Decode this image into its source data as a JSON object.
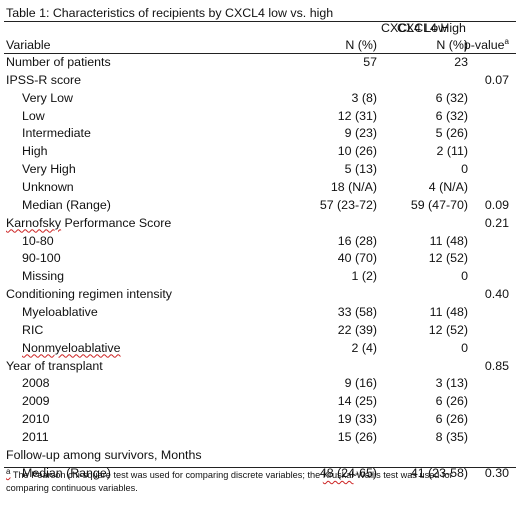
{
  "table": {
    "title": "Table 1: Characteristics of recipients by CXCL4 low vs. high",
    "group_low": "CXCL4 Low",
    "group_high": "CXCL4 High",
    "col_variable": "Variable",
    "col_low_unit": "N (%)",
    "col_high_unit": "N (%)",
    "col_p": "p-value",
    "col_p_sup": "a",
    "rows": [
      {
        "label": "Number of patients",
        "low": "57",
        "high": "23",
        "p": ""
      },
      {
        "label": "IPSS-R score",
        "low": "",
        "high": "",
        "p": "0.07"
      },
      {
        "label": "Very Low",
        "low": "3 (8)",
        "high": "6 (32)",
        "p": ""
      },
      {
        "label": "Low",
        "low": "12 (31)",
        "high": "6 (32)",
        "p": ""
      },
      {
        "label": "Intermediate",
        "low": "9 (23)",
        "high": "5 (26)",
        "p": ""
      },
      {
        "label": "High",
        "low": "10 (26)",
        "high": "2 (11)",
        "p": ""
      },
      {
        "label": "Very High",
        "low": "5 (13)",
        "high": "0",
        "p": ""
      },
      {
        "label": "Unknown",
        "low": "18 (N/A)",
        "high": "4 (N/A)",
        "p": ""
      },
      {
        "label": "Median (Range)",
        "low": "57 (23-72)",
        "high": "59 (47-70)",
        "p": "0.09"
      },
      {
        "label": "Karnofsky Performance Score",
        "low": "",
        "high": "",
        "p": "0.21"
      },
      {
        "label": "10-80",
        "low": "16 (28)",
        "high": "11 (48)",
        "p": ""
      },
      {
        "label": "90-100",
        "low": "40 (70)",
        "high": "12 (52)",
        "p": ""
      },
      {
        "label": "Missing",
        "low": "1 (2)",
        "high": "0",
        "p": ""
      },
      {
        "label": "Conditioning regimen intensity",
        "low": "",
        "high": "",
        "p": "0.40"
      },
      {
        "label": "Myeloablative",
        "low": "33 (58)",
        "high": "11 (48)",
        "p": ""
      },
      {
        "label": "RIC",
        "low": "22 (39)",
        "high": "12 (52)",
        "p": ""
      },
      {
        "label": "Nonmyeloablative",
        "low": "2 (4)",
        "high": "0",
        "p": ""
      },
      {
        "label": "Year of transplant",
        "low": "",
        "high": "",
        "p": "0.85"
      },
      {
        "label": "2008",
        "low": "9 (16)",
        "high": "3 (13)",
        "p": ""
      },
      {
        "label": "2009",
        "low": "14 (25)",
        "high": "6 (26)",
        "p": ""
      },
      {
        "label": "2010",
        "low": "19 (33)",
        "high": "6 (26)",
        "p": ""
      },
      {
        "label": "2011",
        "low": "15 (26)",
        "high": "8 (35)",
        "p": ""
      },
      {
        "label": "Follow-up among survivors, Months",
        "low": "",
        "high": "",
        "p": ""
      },
      {
        "label": "Median (Range)",
        "low": "48 (24-65)",
        "high": "41 (23-58)",
        "p": "0.30"
      }
    ],
    "footnote_sup": "a",
    "footnote_line1": " The Pearson chi-square test was used for comparing discrete variables; the Kruskal-Wallis test was used for",
    "footnote_line2": "comparing continuous variables."
  }
}
